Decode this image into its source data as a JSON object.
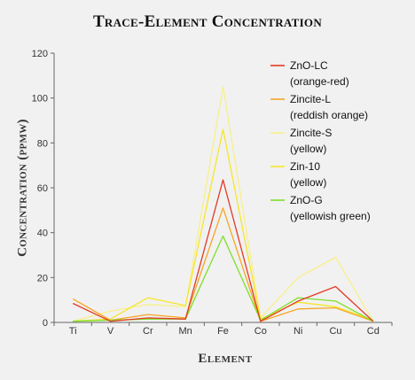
{
  "chart_data": {
    "type": "line",
    "title": "Trace-Element Concentration",
    "xlabel": "Element",
    "ylabel": "Concentration (ppmw)",
    "categories": [
      "Ti",
      "V",
      "Cr",
      "Mn",
      "Fe",
      "Co",
      "Ni",
      "Cu",
      "Cd"
    ],
    "ylim": [
      0,
      120
    ],
    "yticks": [
      0,
      20,
      40,
      60,
      80,
      100,
      120
    ],
    "grid": false,
    "legend_position": "top-right",
    "series": [
      {
        "name": "ZnO-LC",
        "sublabel": "(orange-red)",
        "color": "#e53a26",
        "values": [
          8.5,
          0.5,
          2.0,
          1.5,
          63.5,
          0.5,
          9.5,
          16.0,
          0.5
        ]
      },
      {
        "name": "Zincite-L",
        "sublabel": "(reddish orange)",
        "color": "#f6a623",
        "values": [
          10.5,
          1.0,
          3.5,
          2.0,
          51.0,
          0.5,
          6.0,
          6.5,
          0.5
        ]
      },
      {
        "name": "Zincite-S",
        "sublabel": "(yellow)",
        "color": "#f9f08a",
        "values": [
          0.5,
          5.0,
          8.0,
          7.0,
          105.0,
          2.0,
          20.0,
          29.0,
          0.5
        ]
      },
      {
        "name": "Zin-10",
        "sublabel": "(yellow)",
        "color": "#f7e62b",
        "values": [
          0.5,
          1.5,
          11.0,
          7.5,
          86.0,
          1.5,
          9.0,
          7.0,
          1.0
        ]
      },
      {
        "name": "ZnO-G",
        "sublabel": "(yellowish green)",
        "color": "#7ee02a",
        "values": [
          0.5,
          1.0,
          1.5,
          1.5,
          38.5,
          1.0,
          11.0,
          9.5,
          0.5
        ]
      }
    ]
  }
}
